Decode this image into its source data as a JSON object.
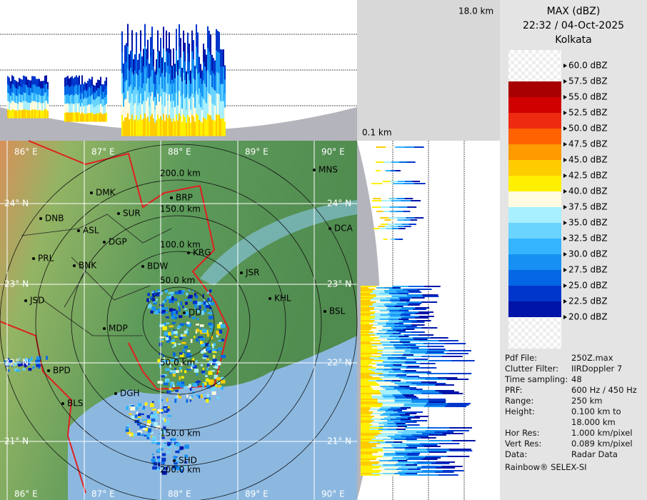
{
  "header": {
    "title": "MAX (dBZ)",
    "datetime": "22:32 / 04-Oct-2025",
    "site": "Kolkata"
  },
  "sections": {
    "top_height_label": "18.0 km",
    "bottom_height_label": "0.1 km"
  },
  "legend": {
    "labels": [
      "60.0 dBZ",
      "57.5 dBZ",
      "55.0 dBZ",
      "52.5 dBZ",
      "50.0 dBZ",
      "47.5 dBZ",
      "45.0 dBZ",
      "42.5 dBZ",
      "40.0 dBZ",
      "37.5 dBZ",
      "35.0 dBZ",
      "32.5 dBZ",
      "30.0 dBZ",
      "27.5 dBZ",
      "25.0 dBZ",
      "22.5 dBZ",
      "20.0 dBZ"
    ],
    "colors": [
      "#f4f4f4",
      "#a80000",
      "#d00000",
      "#ee2a10",
      "#ff6200",
      "#ff9a00",
      "#ffcc00",
      "#fff000",
      "#fffbe0",
      "#a8f0ff",
      "#6ad4ff",
      "#34b4ff",
      "#1690f2",
      "#0466e4",
      "#0036cc",
      "#0014a8"
    ]
  },
  "info": {
    "rows": [
      [
        "Pdf File:",
        "250Z.max"
      ],
      [
        "Clutter Filter:",
        "IIRDoppler 7"
      ],
      [
        "Time sampling:",
        "48"
      ],
      [
        "PRF:",
        "600 Hz / 450 Hz"
      ],
      [
        "Range:",
        "250 km"
      ],
      [
        "Height:",
        "0.100 km to 18.000 km"
      ],
      [
        "Hor Res:",
        "1.000 km/pixel"
      ],
      [
        "Vert Res:",
        "0.089 km/pixel"
      ],
      [
        "Data:",
        "Radar Data"
      ]
    ],
    "footer": "Rainbow® SELEX-SI"
  },
  "map": {
    "lon_labels": [
      "86° E",
      "87° E",
      "88° E",
      "89° E",
      "90° E"
    ],
    "lat_labels": [
      "24° N",
      "23° N",
      "22° N",
      "21° N"
    ],
    "ring_labels": [
      "200.0 km",
      "150.0 km",
      "100.0 km",
      "50.0 km",
      "50.0 km",
      "150.0 km",
      "200.0 km"
    ],
    "cities": [
      "MNS",
      "DMK",
      "BRP",
      "DNB",
      "SUR",
      "ASL",
      "DCA",
      "DGP",
      "KRG",
      "PRL",
      "BNK",
      "BDW",
      "JSR",
      "KHL",
      "JSD",
      "DD",
      "BSL",
      "MDP",
      "BPD",
      "DGH",
      "BLS",
      "SHD"
    ]
  }
}
